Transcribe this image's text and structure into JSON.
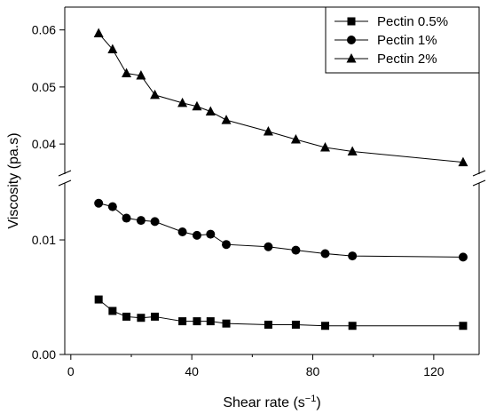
{
  "chart_data": {
    "type": "line",
    "xlabel": "Shear rate (s",
    "xlabel_superscript": "−1",
    "xlabel_suffix": ")",
    "ylabel": "Viscosity (pa.s)",
    "xlim": [
      -2,
      135
    ],
    "x_ticks": [
      0,
      40,
      80,
      120
    ],
    "ylim_lower": [
      0,
      0.0145
    ],
    "y_ticks_lower": [
      0.0,
      0.01
    ],
    "ylim_upper": [
      0.0355,
      0.064
    ],
    "y_ticks_upper": [
      0.04,
      0.05,
      0.06
    ],
    "axis_break": "y",
    "grid": false,
    "legend": {
      "placement": "top-right"
    },
    "series": [
      {
        "name": "Pectin 0.5%",
        "marker": "square",
        "x": [
          9.2,
          13.8,
          18.4,
          23.2,
          27.8,
          36.9,
          41.7,
          46.2,
          51.4,
          65.3,
          74.4,
          84.1,
          93.1,
          129.7
        ],
        "y": [
          0.0048,
          0.0038,
          0.0033,
          0.0032,
          0.0033,
          0.0029,
          0.0029,
          0.0029,
          0.0027,
          0.0026,
          0.0026,
          0.0025,
          0.0025,
          0.0025
        ]
      },
      {
        "name": "Pectin 1%",
        "marker": "circle",
        "x": [
          9.2,
          13.8,
          18.4,
          23.2,
          27.8,
          36.9,
          41.7,
          46.2,
          51.4,
          65.3,
          74.4,
          84.1,
          93.1,
          129.7
        ],
        "y": [
          0.0132,
          0.0129,
          0.0119,
          0.0117,
          0.0116,
          0.0107,
          0.0104,
          0.0105,
          0.0096,
          0.0094,
          0.0091,
          0.0088,
          0.0086,
          0.0085
        ]
      },
      {
        "name": "Pectin 2%",
        "marker": "triangle",
        "x": [
          9.2,
          13.8,
          18.4,
          23.2,
          27.8,
          36.9,
          41.7,
          46.2,
          51.4,
          65.3,
          74.4,
          84.1,
          93.1,
          129.7
        ],
        "y": [
          0.0594,
          0.0566,
          0.0524,
          0.052,
          0.0486,
          0.0472,
          0.0466,
          0.0457,
          0.0442,
          0.0422,
          0.0408,
          0.0394,
          0.0387,
          0.0368
        ]
      }
    ],
    "colors": {
      "line": "#000000",
      "marker": "#000000",
      "background": "#ffffff"
    }
  }
}
